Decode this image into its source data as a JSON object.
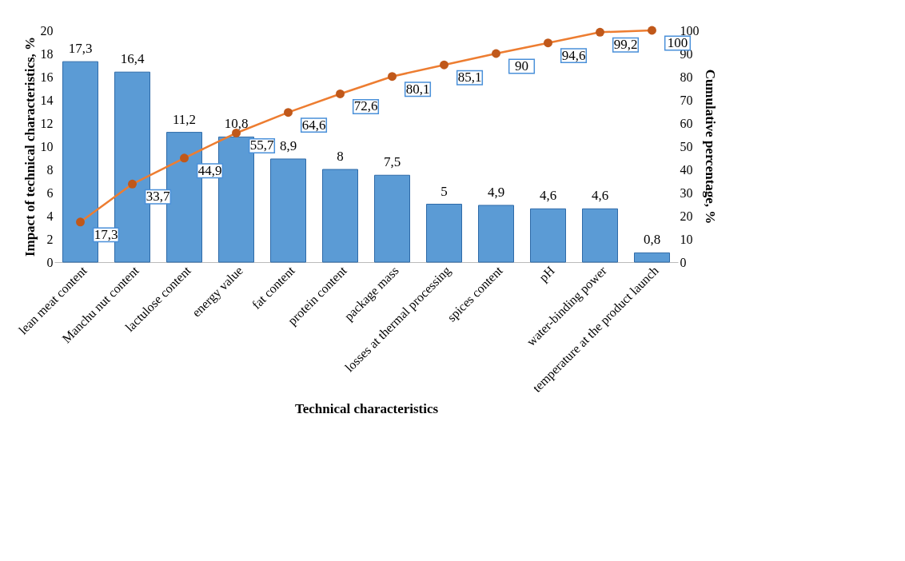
{
  "chart_data": {
    "type": "bar",
    "xlabel": "Technical characteristics",
    "ylabel": "Impact of technical characteristics, %",
    "y2label": "Cumulative percentage, %",
    "categories": [
      "lean meat content",
      "Manchu nut content",
      "lactulose content",
      "energy value",
      "fat content",
      "protein content",
      "package mass",
      "losses at thermal processing",
      "spices content",
      "pH",
      "water-binding power",
      "temperature at the product launch"
    ],
    "series": [
      {
        "color": "#5b9bd5",
        "values": [
          17.3,
          16.4,
          11.2,
          10.8,
          8.9,
          8,
          7.5,
          5,
          4.9,
          4.6,
          4.6,
          0.8
        ],
        "value_labels": [
          "17,3",
          "16,4",
          "11,2",
          "10,8",
          "8,9",
          "8",
          "7,5",
          "5",
          "4,9",
          "4,6",
          "4,6",
          "0,8"
        ]
      },
      {
        "type": "line",
        "axis": "y2",
        "color": "#ed7d31",
        "marker": "circle",
        "line_style": "solid",
        "values": [
          17.3,
          33.7,
          44.9,
          55.7,
          64.6,
          72.6,
          80.1,
          85.1,
          90,
          94.6,
          99.2,
          100
        ],
        "value_labels": [
          "17,3",
          "33,7",
          "44,9",
          "55,7",
          "64,6",
          "72,6",
          "80,1",
          "85,1",
          "90",
          "94,6",
          "99,2",
          "100"
        ]
      }
    ],
    "ylim": [
      0,
      20
    ],
    "yticks": [
      0,
      2,
      4,
      6,
      8,
      10,
      12,
      14,
      16,
      18,
      20
    ],
    "y2lim": [
      0,
      100
    ],
    "y2ticks": [
      0,
      10,
      20,
      30,
      40,
      50,
      60,
      70,
      80,
      90,
      100
    ],
    "grid": false
  }
}
